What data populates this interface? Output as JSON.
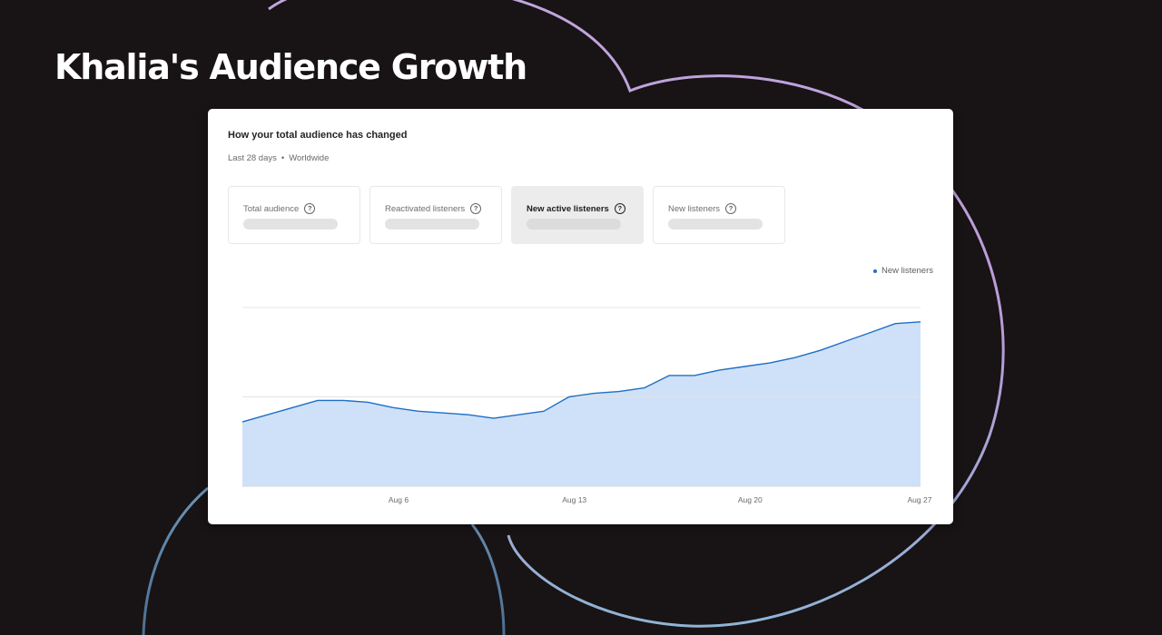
{
  "page": {
    "title": "Khalia's Audience Growth"
  },
  "card": {
    "title": "How your total audience has changed",
    "period": "Last 28 days",
    "separator": "•",
    "region": "Worldwide"
  },
  "metrics": [
    {
      "label": "Total audience",
      "help": "?",
      "active": false
    },
    {
      "label": "Reactivated listeners",
      "help": "?",
      "active": false
    },
    {
      "label": "New active listeners",
      "help": "?",
      "active": true
    },
    {
      "label": "New listeners",
      "help": "?",
      "active": false
    }
  ],
  "colors": {
    "background": "#181314",
    "line": "#1f6fc5",
    "fill": "#cfe1f9",
    "decor_purple": "#b79ad8",
    "decor_blue": "#5f8fb5"
  },
  "chart_data": {
    "type": "area",
    "series": [
      {
        "name": "New listeners",
        "x": [
          "Jul 31",
          "Aug 1",
          "Aug 2",
          "Aug 3",
          "Aug 4",
          "Aug 5",
          "Aug 6",
          "Aug 7",
          "Aug 8",
          "Aug 9",
          "Aug 10",
          "Aug 11",
          "Aug 12",
          "Aug 13",
          "Aug 14",
          "Aug 15",
          "Aug 16",
          "Aug 17",
          "Aug 18",
          "Aug 19",
          "Aug 20",
          "Aug 21",
          "Aug 22",
          "Aug 23",
          "Aug 24",
          "Aug 25",
          "Aug 26",
          "Aug 27"
        ],
        "values": [
          36,
          40,
          44,
          48,
          48,
          47,
          44,
          42,
          41,
          40,
          38,
          40,
          42,
          50,
          52,
          53,
          55,
          62,
          62,
          65,
          67,
          69,
          72,
          76,
          81,
          86,
          91,
          92
        ]
      }
    ],
    "xticks": [
      "Aug 6",
      "Aug 13",
      "Aug 20",
      "Aug 27"
    ],
    "ylim": [
      0,
      100
    ],
    "yticks_count": 3,
    "grid": true,
    "legend": "top-right",
    "xlabel": "",
    "ylabel": ""
  }
}
